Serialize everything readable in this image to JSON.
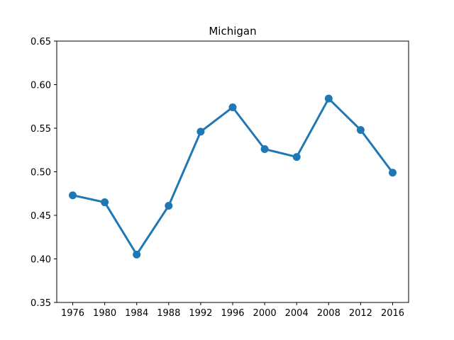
{
  "chart_data": {
    "type": "line",
    "title": "Michigan",
    "xlabel": "",
    "ylabel": "",
    "categories": [
      "1976",
      "1980",
      "1984",
      "1988",
      "1992",
      "1996",
      "2000",
      "2004",
      "2008",
      "2012",
      "2016"
    ],
    "series": [
      {
        "values": [
          0.473,
          0.465,
          0.405,
          0.461,
          0.546,
          0.574,
          0.526,
          0.517,
          0.584,
          0.548,
          0.499
        ],
        "color": "#1f77b4"
      }
    ],
    "ylim": [
      0.35,
      0.65
    ],
    "yticks": [
      "0.35",
      "0.40",
      "0.45",
      "0.50",
      "0.55",
      "0.60",
      "0.65"
    ],
    "grid": false,
    "legend": "none",
    "marker": "circle"
  }
}
